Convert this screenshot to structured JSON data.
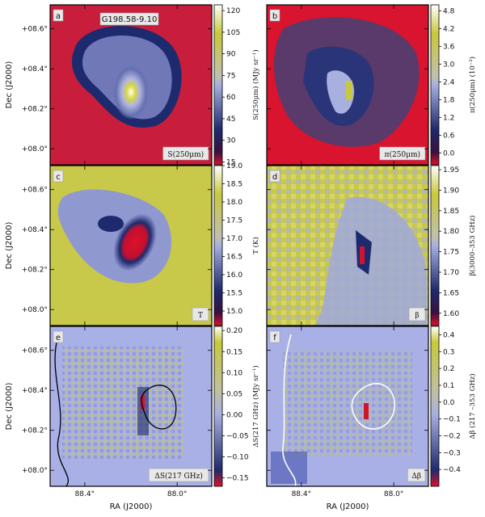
{
  "chart_data": [
    {
      "type": "heatmap",
      "letter": "a",
      "title": "G198.58-9.10",
      "tag": "S(250μm)",
      "colorbar": {
        "label": "S(250μm) (MJy sr⁻¹)",
        "range": [
          13,
          124
        ],
        "ticks": [
          "15",
          "30",
          "45",
          "60",
          "75",
          "90",
          "105",
          "120"
        ],
        "tick_values": [
          15,
          30,
          45,
          60,
          75,
          90,
          105,
          120
        ]
      },
      "ylabel": "Dec (J2000)",
      "yticks": [
        "+08.6°",
        "+08.4°",
        "+08.2°",
        "+08.0°"
      ],
      "xticks": []
    },
    {
      "type": "heatmap",
      "letter": "b",
      "title": "",
      "tag": "π(250μm)",
      "colorbar": {
        "label": "π(250μm) (10⁻³)",
        "range": [
          -0.4,
          5.0
        ],
        "ticks": [
          "4.8",
          "4.2",
          "3.6",
          "3.0",
          "2.4",
          "1.8",
          "1.2",
          "0.6",
          "0.0"
        ],
        "tick_values": [
          4.8,
          4.2,
          3.6,
          3.0,
          2.4,
          1.8,
          1.2,
          0.6,
          0.0
        ]
      },
      "ylabel": "",
      "yticks": [],
      "xticks": []
    },
    {
      "type": "heatmap",
      "letter": "c",
      "title": "",
      "tag": "T",
      "colorbar": {
        "label": "T (K)",
        "range": [
          14.6,
          19.0
        ],
        "ticks": [
          "19.0",
          "18.5",
          "18.0",
          "17.5",
          "17.0",
          "16.5",
          "16.0",
          "15.5",
          "15.0"
        ],
        "tick_values": [
          19.0,
          18.5,
          18.0,
          17.5,
          17.0,
          16.5,
          16.0,
          15.5,
          15.0
        ]
      },
      "ylabel": "Dec (J2000)",
      "yticks": [
        "+08.6°",
        "+08.4°",
        "+08.2°",
        "+08.0°"
      ],
      "xticks": []
    },
    {
      "type": "heatmap",
      "letter": "d",
      "title": "",
      "tag": "β",
      "colorbar": {
        "label": "β(3000–353 GHz)",
        "range": [
          1.57,
          1.96
        ],
        "ticks": [
          "1.95",
          "1.90",
          "1.85",
          "1.80",
          "1.75",
          "1.70",
          "1.65",
          "1.60"
        ],
        "tick_values": [
          1.95,
          1.9,
          1.85,
          1.8,
          1.75,
          1.7,
          1.65,
          1.6
        ]
      },
      "ylabel": "",
      "yticks": [],
      "xticks": []
    },
    {
      "type": "heatmap",
      "letter": "e",
      "title": "",
      "tag": "ΔS(217 GHz)",
      "colorbar": {
        "label": "ΔS(217 GHz) (MJy sr⁻¹)",
        "range": [
          -0.17,
          0.21
        ],
        "ticks": [
          "0.20",
          "0.15",
          "0.10",
          "0.05",
          "0.00",
          "−0.05",
          "−0.10",
          "−0.15"
        ],
        "tick_values": [
          0.2,
          0.15,
          0.1,
          0.05,
          0.0,
          -0.05,
          -0.1,
          -0.15
        ]
      },
      "ylabel": "Dec (J2000)",
      "yticks": [
        "+08.6°",
        "+08.4°",
        "+08.2°",
        "+08.0°"
      ],
      "xticks": [
        "88.4°",
        "88.0°"
      ],
      "xlabel": "RA (J2000)"
    },
    {
      "type": "heatmap",
      "letter": "f",
      "title": "",
      "tag": "Δβ",
      "colorbar": {
        "label": "Δβ (217 –353 GHz)",
        "range": [
          -0.5,
          0.45
        ],
        "ticks": [
          "0.4",
          "0.3",
          "0.2",
          "0.1",
          "0.0",
          "−0.1",
          "−0.2",
          "−0.3",
          "−0.4"
        ],
        "tick_values": [
          0.4,
          0.3,
          0.2,
          0.1,
          0.0,
          -0.1,
          -0.2,
          -0.3,
          -0.4
        ]
      },
      "ylabel": "",
      "yticks": [],
      "xticks": [
        "88.4°",
        "88.0°"
      ],
      "xlabel": "RA (J2000)"
    }
  ],
  "colors": {
    "low": "#e0102a",
    "navy": "#1e2a6e",
    "mid": "#a8b0e0",
    "yellow": "#c8c83a",
    "high": "#ffffff"
  }
}
